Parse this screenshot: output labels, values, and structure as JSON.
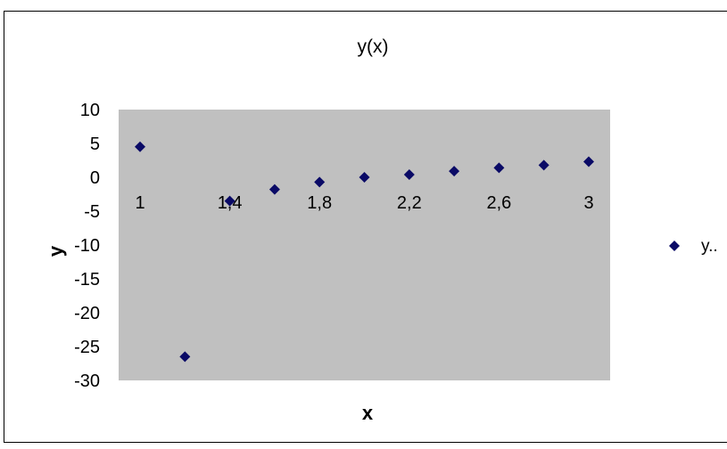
{
  "chart_data": {
    "type": "scatter",
    "title": "y(x)",
    "xlabel": "x",
    "ylabel": "y",
    "x_ticks": [
      "1",
      "1,4",
      "1,8",
      "2,2",
      "2,6",
      "3"
    ],
    "y_ticks": [
      "10",
      "5",
      "0",
      "-5",
      "-10",
      "-15",
      "-20",
      "-25",
      "-30"
    ],
    "xlim": [
      1,
      3
    ],
    "ylim": [
      -30,
      10
    ],
    "grid": false,
    "legend_position": "right",
    "series": [
      {
        "name": "y..",
        "color": "#0a0a66",
        "marker": "diamond",
        "points": [
          {
            "x": 1.0,
            "y": 4.5
          },
          {
            "x": 1.2,
            "y": -26.5
          },
          {
            "x": 1.4,
            "y": -3.5
          },
          {
            "x": 1.6,
            "y": -1.8
          },
          {
            "x": 1.8,
            "y": -0.7
          },
          {
            "x": 2.0,
            "y": 0.0
          },
          {
            "x": 2.2,
            "y": 0.4
          },
          {
            "x": 2.4,
            "y": 0.9
          },
          {
            "x": 2.6,
            "y": 1.4
          },
          {
            "x": 2.8,
            "y": 1.8
          },
          {
            "x": 3.0,
            "y": 2.3
          }
        ]
      }
    ],
    "plot_background": "#c0c0c0"
  }
}
